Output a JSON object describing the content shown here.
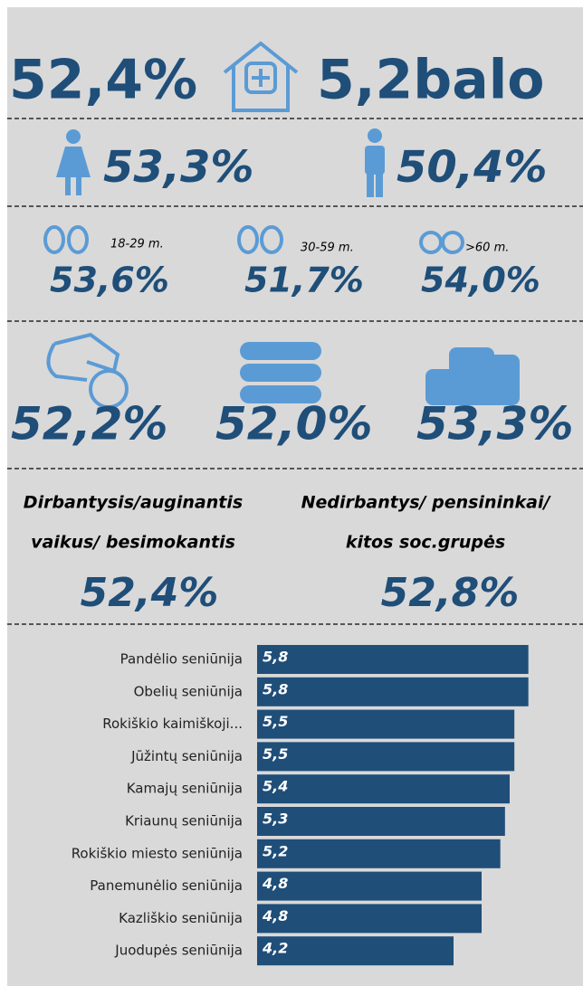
{
  "header": {
    "overall": "52,4%",
    "score": "5,2balo"
  },
  "gender": {
    "female": "53,3%",
    "male": "50,4%"
  },
  "age": [
    {
      "label": "18-29 m.",
      "value": "53,6%"
    },
    {
      "label": "30-59 m.",
      "value": "51,7%"
    },
    {
      "label": ">60 m.",
      "value": "54,0%"
    }
  ],
  "income": [
    "52,2%",
    "52,0%",
    "53,3%"
  ],
  "occupation": [
    {
      "lines": [
        "Dirbantysis/auginantis",
        "vaikus/ besimokantis"
      ],
      "value": "52,4%"
    },
    {
      "lines": [
        "Nedirbantys/ pensininkai/",
        "kitos soc.grupės"
      ],
      "value": "52,8%"
    }
  ],
  "chart_data": {
    "type": "bar",
    "orientation": "horizontal",
    "categories": [
      "Pandėlio seniūnija",
      "Obelių seniūnija",
      "Rokiškio kaimiškoji...",
      "Jūžintų seniūnija",
      "Kamajų seniūnija",
      "Kriaunų seniūnija",
      "Rokiškio miesto seniūnija",
      "Panemunėlio seniūnija",
      "Kazliškio seniūnija",
      "Juodupės seniūnija"
    ],
    "values": [
      5.8,
      5.8,
      5.5,
      5.5,
      5.4,
      5.3,
      5.2,
      4.8,
      4.8,
      4.2
    ],
    "value_labels": [
      "5,8",
      "5,8",
      "5,5",
      "5,5",
      "5,4",
      "5,3",
      "5,2",
      "4,8",
      "4,8",
      "4,2"
    ],
    "color": "#1f4e79",
    "xlim": [
      0,
      6
    ]
  }
}
